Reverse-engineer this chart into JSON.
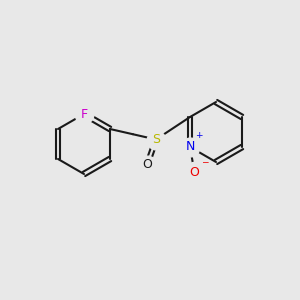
{
  "background_color": "#e8e8e8",
  "bond_color": "#1a1a1a",
  "bond_lw": 1.5,
  "atom_colors": {
    "F": "#cc00cc",
    "S": "#b8b800",
    "N": "#0000ee",
    "O_sulfinyl": "#1a1a1a",
    "O_oxide": "#ee0000"
  },
  "font_size": 9,
  "font_size_charge": 6.5
}
